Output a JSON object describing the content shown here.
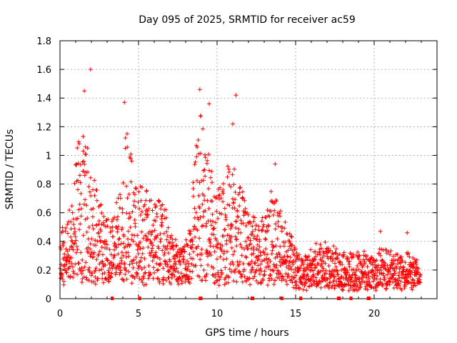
{
  "chart_data": {
    "type": "scatter",
    "title": "Day 095 of 2025, SRMTID for receiver ac59",
    "xlabel": "GPS time / hours",
    "ylabel": "SRMTID / TECUs",
    "xlim": [
      0,
      24
    ],
    "ylim": [
      0,
      1.8
    ],
    "xticks": [
      0,
      5,
      10,
      15,
      20
    ],
    "yticks": [
      0,
      0.2,
      0.4,
      0.6,
      0.8,
      1,
      1.2,
      1.4,
      1.6,
      1.8
    ],
    "grid": true,
    "marker": "+",
    "color": "#ff0000",
    "baseline_markers_x": [
      3.3,
      3.35,
      5.05,
      5.1,
      8.9,
      9.0,
      12.2,
      12.3,
      14.1,
      14.15,
      15.3,
      15.35,
      17.7,
      17.8,
      18.5,
      18.55,
      19.6,
      19.7
    ],
    "envelope": [
      [
        0.0,
        0.45
      ],
      [
        0.5,
        0.55
      ],
      [
        1.0,
        0.95
      ],
      [
        1.5,
        1.35
      ],
      [
        2.0,
        1.1
      ],
      [
        2.5,
        0.7
      ],
      [
        3.0,
        0.55
      ],
      [
        3.5,
        0.6
      ],
      [
        4.0,
        1.0
      ],
      [
        4.3,
        1.3
      ],
      [
        4.7,
        0.75
      ],
      [
        5.2,
        0.85
      ],
      [
        5.7,
        0.7
      ],
      [
        6.2,
        0.75
      ],
      [
        6.8,
        0.6
      ],
      [
        7.2,
        0.45
      ],
      [
        7.7,
        0.35
      ],
      [
        8.2,
        0.5
      ],
      [
        8.7,
        1.1
      ],
      [
        9.0,
        1.35
      ],
      [
        9.5,
        1.0
      ],
      [
        10.0,
        0.75
      ],
      [
        10.5,
        0.8
      ],
      [
        11.0,
        1.1
      ],
      [
        11.5,
        0.8
      ],
      [
        12.0,
        0.65
      ],
      [
        12.5,
        0.55
      ],
      [
        13.0,
        0.65
      ],
      [
        13.5,
        0.75
      ],
      [
        14.0,
        0.65
      ],
      [
        14.5,
        0.5
      ],
      [
        15.0,
        0.35
      ],
      [
        15.5,
        0.28
      ],
      [
        16.5,
        0.38
      ],
      [
        17.5,
        0.35
      ],
      [
        18.5,
        0.32
      ],
      [
        19.5,
        0.33
      ],
      [
        20.5,
        0.35
      ],
      [
        21.5,
        0.3
      ],
      [
        22.5,
        0.3
      ],
      [
        22.9,
        0.25
      ]
    ],
    "peaks": [
      {
        "x": 1.95,
        "y": 1.6
      },
      {
        "x": 1.55,
        "y": 1.45
      },
      {
        "x": 4.1,
        "y": 1.37
      },
      {
        "x": 8.9,
        "y": 1.46
      },
      {
        "x": 9.5,
        "y": 1.36
      },
      {
        "x": 11.2,
        "y": 1.42
      },
      {
        "x": 11.0,
        "y": 1.22
      },
      {
        "x": 13.7,
        "y": 0.94
      },
      {
        "x": 20.4,
        "y": 0.47
      },
      {
        "x": 22.1,
        "y": 0.46
      }
    ]
  }
}
